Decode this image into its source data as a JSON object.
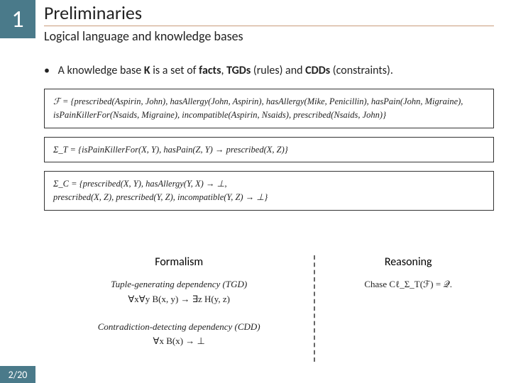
{
  "colors": {
    "accent": "#4a7a8a",
    "title_underline": "#c99b7a",
    "box_border": "#333333",
    "dashed_divider": "#666666",
    "text": "#222222",
    "background": "#ffffff"
  },
  "section_number": "1",
  "title": "Preliminaries",
  "subtitle": "Logical language and knowledge bases",
  "bullet": "A knowledge base K is a set of facts, TGDs (rules) and CDDs (constraints).",
  "boxes": {
    "facts": "ℱ = {prescribed(Aspirin, John), hasAllergy(John, Aspirin), hasAllergy(Mike, Penicillin), hasPain(John, Migraine), isPainKillerFor(Nsaids, Migraine), incompatible(Aspirin, Nsaids), prescribed(Nsaids, John)}",
    "tgd": "Σ_T = {isPainKillerFor(X, Y), hasPain(Z, Y) → prescribed(X, Z)}",
    "cdd": "Σ_C = {prescribed(X, Y), hasAllergy(Y, X) → ⊥,\nprescribed(X, Z), prescribed(Y, Z), incompatible(Y, Z) → ⊥}"
  },
  "lower": {
    "left_title": "Formalism",
    "right_title": "Reasoning",
    "tgd_heading": "Tuple-generating dependency (TGD)",
    "tgd_formula": "∀x∀y B(x, y) → ∃z H(y, z)",
    "cdd_heading": "Contradiction-detecting dependency (CDD)",
    "cdd_formula": "∀x B(x) → ⊥",
    "reasoning_formula": "Chase Cℓ_Σ_T(ℱ) = 𝒬."
  },
  "footer": "2/20"
}
